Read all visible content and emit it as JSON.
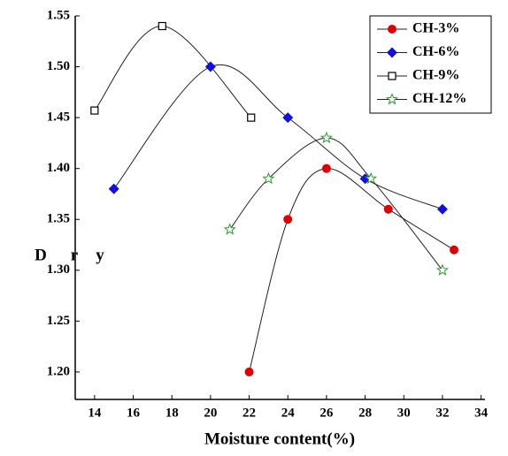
{
  "chart_data": {
    "type": "line",
    "x_label": "Moisture content(%)",
    "y_label_parts": [
      "D",
      "r",
      "y"
    ],
    "xlim": [
      13,
      34.2
    ],
    "ylim": [
      1.173,
      1.55
    ],
    "xticks": [
      14,
      16,
      18,
      20,
      22,
      24,
      26,
      28,
      30,
      32,
      34
    ],
    "yticks": [
      {
        "value": 1.2,
        "label": "1.20"
      },
      1.25,
      {
        "value": 1.3,
        "label": "1.30"
      },
      1.35,
      {
        "value": 1.4,
        "label": "1.40"
      },
      1.45,
      {
        "value": 1.5,
        "label": "1.50"
      },
      1.55
    ],
    "legend": "upper right",
    "series": [
      {
        "name": "CH-3%",
        "color": "#e00000",
        "marker": "circle",
        "x": [
          22,
          24,
          26,
          29.2,
          32.6
        ],
        "values": [
          1.2,
          1.35,
          1.4,
          1.36,
          1.32
        ]
      },
      {
        "name": "CH-6%",
        "color": "#1010e0",
        "marker": "diamond",
        "x": [
          15,
          20,
          24,
          28,
          32
        ],
        "values": [
          1.38,
          1.5,
          1.45,
          1.39,
          1.36
        ]
      },
      {
        "name": "CH-9%",
        "color": "#000000",
        "marker": "square",
        "x": [
          14,
          17.5,
          22.1
        ],
        "values": [
          1.457,
          1.54,
          1.45
        ]
      },
      {
        "name": "CH-12%",
        "color": "#2a9a2a",
        "marker": "star",
        "x": [
          21,
          23,
          26,
          28.3,
          32
        ],
        "values": [
          1.34,
          1.39,
          1.43,
          1.39,
          1.3
        ]
      }
    ]
  }
}
